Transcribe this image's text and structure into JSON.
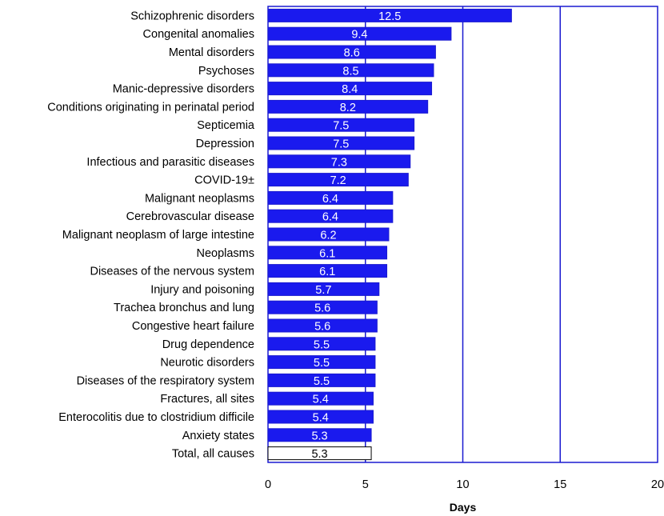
{
  "chart_data": {
    "type": "bar",
    "orientation": "horizontal",
    "categories": [
      "Schizophrenic disorders",
      "Congenital anomalies",
      "Mental disorders",
      "Psychoses",
      "Manic-depressive disorders",
      "Conditions originating in perinatal period",
      "Septicemia",
      "Depression",
      "Infectious and parasitic diseases",
      "COVID-19±",
      "Malignant neoplasms",
      "Cerebrovascular disease",
      "Malignant neoplasm of large intestine",
      "Neoplasms",
      "Diseases of the nervous system",
      "Injury and poisoning",
      "Trachea bronchus and lung",
      "Congestive heart failure",
      "Drug dependence",
      "Neurotic disorders",
      "Diseases of the respiratory system",
      "Fractures, all sites",
      "Enterocolitis due to clostridium difficile",
      "Anxiety states",
      "Total, all causes"
    ],
    "values": [
      12.5,
      9.4,
      8.6,
      8.5,
      8.4,
      8.2,
      7.5,
      7.5,
      7.3,
      7.2,
      6.4,
      6.4,
      6.2,
      6.1,
      6.1,
      5.7,
      5.6,
      5.6,
      5.5,
      5.5,
      5.5,
      5.4,
      5.4,
      5.3,
      5.3
    ],
    "value_labels": [
      "12.5",
      "9.4",
      "8.6",
      "8.5",
      "8.4",
      "8.2",
      "7.5",
      "7.5",
      "7.3",
      "7.2",
      "6.4",
      "6.4",
      "6.2",
      "6.1",
      "6.1",
      "5.7",
      "5.6",
      "5.6",
      "5.5",
      "5.5",
      "5.5",
      "5.4",
      "5.4",
      "5.3",
      "5.3"
    ],
    "highlight_category": "Total, all causes",
    "xlabel": "Days",
    "xlim": [
      0,
      20
    ],
    "xticks": [
      "0",
      "5",
      "10",
      "15",
      "20"
    ],
    "grid": "vertical",
    "colors": {
      "bar": "#1a1aee",
      "highlight_bar": "#ffffff",
      "border": "#1a1ad0",
      "value_text": "#ffffff",
      "highlight_value_text": "#000000"
    }
  }
}
